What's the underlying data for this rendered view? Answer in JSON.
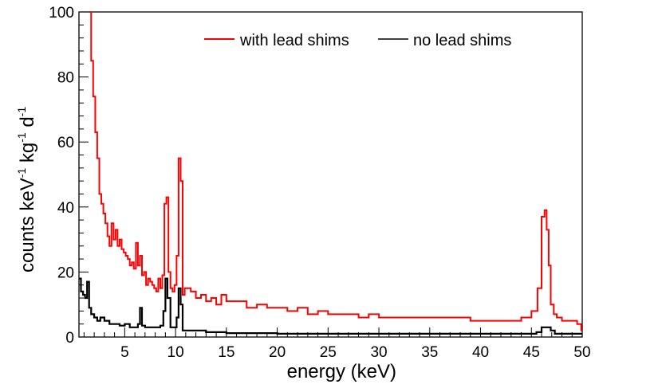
{
  "chart_data": {
    "type": "line",
    "title": "",
    "xlabel": "energy (keV)",
    "ylabel": {
      "base": "counts keV",
      "sup1": "-1",
      "mid": " kg",
      "sup2": "-1",
      "end": " d",
      "sup3": "-1"
    },
    "xlim": [
      0.5,
      50
    ],
    "ylim": [
      0,
      100
    ],
    "x_ticks": [
      5,
      10,
      15,
      20,
      25,
      30,
      35,
      40,
      45,
      50
    ],
    "x_tick_labels": [
      "5",
      "10",
      "15",
      "20",
      "25",
      "30",
      "35",
      "40",
      "45",
      "50"
    ],
    "y_ticks": [
      0,
      20,
      40,
      60,
      80,
      100
    ],
    "y_tick_labels": [
      "0",
      "20",
      "40",
      "60",
      "80",
      "100"
    ],
    "legend_position": "top-right",
    "series": [
      {
        "name": "with lead shims",
        "color": "#ff0000",
        "x": [
          1.5,
          1.7,
          1.9,
          2.1,
          2.3,
          2.5,
          2.7,
          2.9,
          3.1,
          3.3,
          3.5,
          3.7,
          3.9,
          4.1,
          4.3,
          4.5,
          4.7,
          4.9,
          5.1,
          5.3,
          5.5,
          5.7,
          5.9,
          6.1,
          6.3,
          6.5,
          6.7,
          6.9,
          7.1,
          7.3,
          7.5,
          7.7,
          7.9,
          8.1,
          8.3,
          8.5,
          8.7,
          8.9,
          9.1,
          9.3,
          9.5,
          9.7,
          9.9,
          10.1,
          10.3,
          10.5,
          10.7,
          10.9,
          11.5,
          12,
          12.5,
          13,
          13.5,
          14,
          14.5,
          15,
          16,
          17,
          18,
          19,
          20,
          21,
          22,
          23,
          24,
          25,
          26,
          27,
          28,
          29,
          30,
          31,
          32,
          33,
          34,
          35,
          36,
          37,
          38,
          39,
          40,
          41,
          42,
          43,
          44,
          45,
          45.6,
          46,
          46.3,
          46.5,
          46.7,
          46.9,
          47.2,
          47.5,
          48,
          48.5,
          49,
          49.5,
          49.9
        ],
        "y": [
          100,
          85,
          74,
          63,
          55,
          44,
          41,
          38,
          35,
          31,
          28,
          35,
          30,
          33,
          28,
          30,
          27,
          26,
          25,
          24,
          22,
          23,
          21,
          29,
          22,
          25,
          19,
          20,
          16,
          18,
          17,
          16,
          15,
          14,
          18,
          15,
          19,
          41,
          43,
          20,
          15,
          14,
          16,
          25,
          55,
          48,
          13,
          15,
          14,
          12,
          13,
          11,
          12,
          10,
          13,
          11,
          11,
          9,
          10,
          9,
          9,
          8,
          9,
          7,
          8,
          7,
          7,
          7,
          6,
          7,
          6,
          6,
          6,
          6,
          6,
          6,
          6,
          6,
          6,
          5,
          5,
          5,
          5,
          5,
          6,
          8,
          15,
          37,
          39,
          33,
          22,
          10,
          7,
          6,
          5,
          5,
          5,
          4,
          2
        ]
      },
      {
        "name": "no lead shims",
        "color": "#000000",
        "x": [
          0.5,
          0.7,
          0.9,
          1.1,
          1.3,
          1.5,
          1.7,
          2,
          2.3,
          2.6,
          3,
          3.5,
          4,
          4.5,
          5,
          5.5,
          6,
          6.3,
          6.5,
          6.7,
          7,
          7.5,
          8,
          8.5,
          8.8,
          9,
          9.2,
          9.5,
          9.8,
          10.1,
          10.3,
          10.5,
          10.7,
          11,
          12,
          13,
          14,
          15,
          17,
          20,
          25,
          30,
          35,
          40,
          43,
          44.5,
          45.5,
          46,
          46.5,
          46.9,
          47.3,
          48,
          49,
          49.9
        ],
        "y": [
          18,
          14,
          13,
          12,
          17,
          9,
          7,
          6,
          5,
          6,
          5,
          4,
          4,
          3.5,
          4,
          3,
          3,
          4,
          9,
          3.5,
          3,
          3,
          3,
          3.5,
          8,
          18,
          12,
          3,
          3,
          6,
          15,
          10,
          2,
          2,
          2,
          1.5,
          1.5,
          1.2,
          1.2,
          1,
          1,
          1,
          1,
          1,
          1,
          1,
          1.5,
          3,
          3,
          2,
          1,
          1,
          1,
          1
        ]
      }
    ]
  }
}
